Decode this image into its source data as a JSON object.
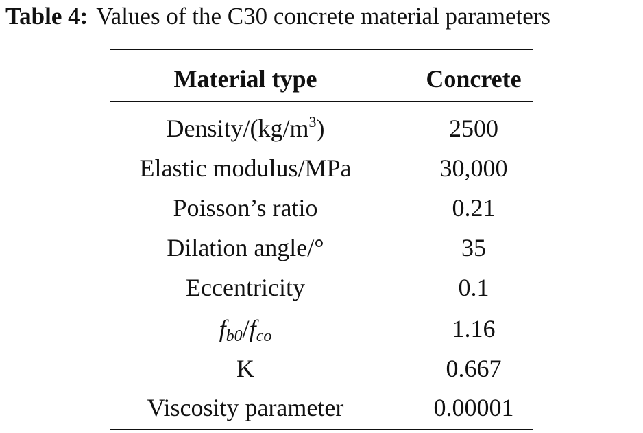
{
  "caption": {
    "label": "Table 4:",
    "text": "Values of the C30 concrete material parameters"
  },
  "table": {
    "headers": [
      "Material type",
      "Concrete"
    ],
    "rows": [
      {
        "param_main": "Density/(kg/m",
        "param_sup": "3",
        "param_tail": ")",
        "value": "2500"
      },
      {
        "param": "Elastic modulus/MPa",
        "value": "30,000"
      },
      {
        "param": "Poisson’s ratio",
        "value": "0.21"
      },
      {
        "param": "Dilation angle/°",
        "value": "35"
      },
      {
        "param": "Eccentricity",
        "value": "0.1"
      },
      {
        "param_a": "f",
        "param_a_sub": "b0",
        "param_slash": "/",
        "param_b": "f",
        "param_b_sub": "co",
        "value": "1.16"
      },
      {
        "param": "K",
        "value": "0.667"
      },
      {
        "param": "Viscosity parameter",
        "value": "0.00001"
      }
    ]
  }
}
